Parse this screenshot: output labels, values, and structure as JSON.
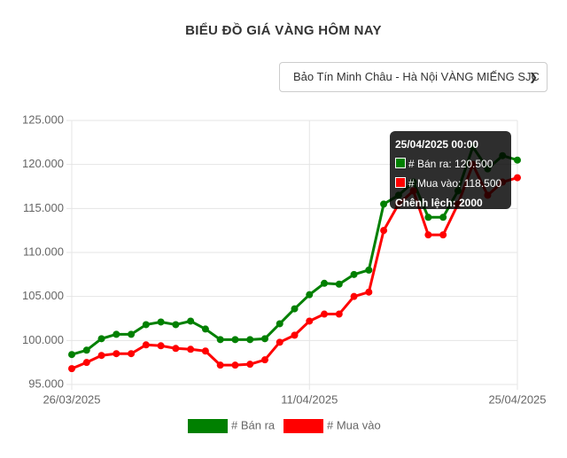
{
  "page": {
    "dropdown": "Bảo Tín Minh Châu - Hà Nội VÀNG MIẾNG SJC"
  },
  "tooltip": {
    "title": "25/04/2025 00:00",
    "lines": [
      "# Bán ra: 120.500",
      "# Mua vào: 118.500"
    ],
    "footer": "Chênh lệch: 2000"
  },
  "chart_data": {
    "type": "line",
    "title": "BIỂU ĐỒ GIÁ VÀNG HÔM NAY",
    "categories": [
      "26/03/2025",
      null,
      null,
      null,
      null,
      null,
      null,
      null,
      null,
      null,
      null,
      null,
      null,
      null,
      null,
      null,
      "11/04/2025",
      null,
      null,
      null,
      null,
      null,
      null,
      null,
      null,
      null,
      null,
      null,
      null,
      null,
      "25/04/2025"
    ],
    "series": [
      {
        "name": "# Bán ra",
        "color": "#008000",
        "values": [
          98400,
          98900,
          100200,
          100700,
          100700,
          101800,
          102100,
          101800,
          102200,
          101300,
          100100,
          100100,
          100100,
          100200,
          101900,
          103600,
          105200,
          106500,
          106400,
          107500,
          108000,
          115500,
          116500,
          118000,
          114000,
          114000,
          117000,
          122000,
          119500,
          121000,
          120500
        ]
      },
      {
        "name": "# Mua vào",
        "color": "#ff0000",
        "values": [
          96800,
          97500,
          98300,
          98500,
          98500,
          99500,
          99400,
          99100,
          99000,
          98800,
          97200,
          97200,
          97300,
          97800,
          99800,
          100600,
          102200,
          103000,
          103000,
          105000,
          105500,
          112500,
          115500,
          117000,
          112000,
          112000,
          115500,
          120000,
          116500,
          118000,
          118500
        ]
      }
    ],
    "ylim": [
      95000,
      125000
    ],
    "yticks": [
      {
        "value": 95000,
        "label": "95.000"
      },
      {
        "value": 100000,
        "label": "100.000"
      },
      {
        "value": 105000,
        "label": "105.000"
      },
      {
        "value": 110000,
        "label": "110.000"
      },
      {
        "value": 115000,
        "label": "115.000"
      },
      {
        "value": 120000,
        "label": "120.000"
      },
      {
        "value": 125000,
        "label": "125.000"
      }
    ],
    "grid": true
  }
}
